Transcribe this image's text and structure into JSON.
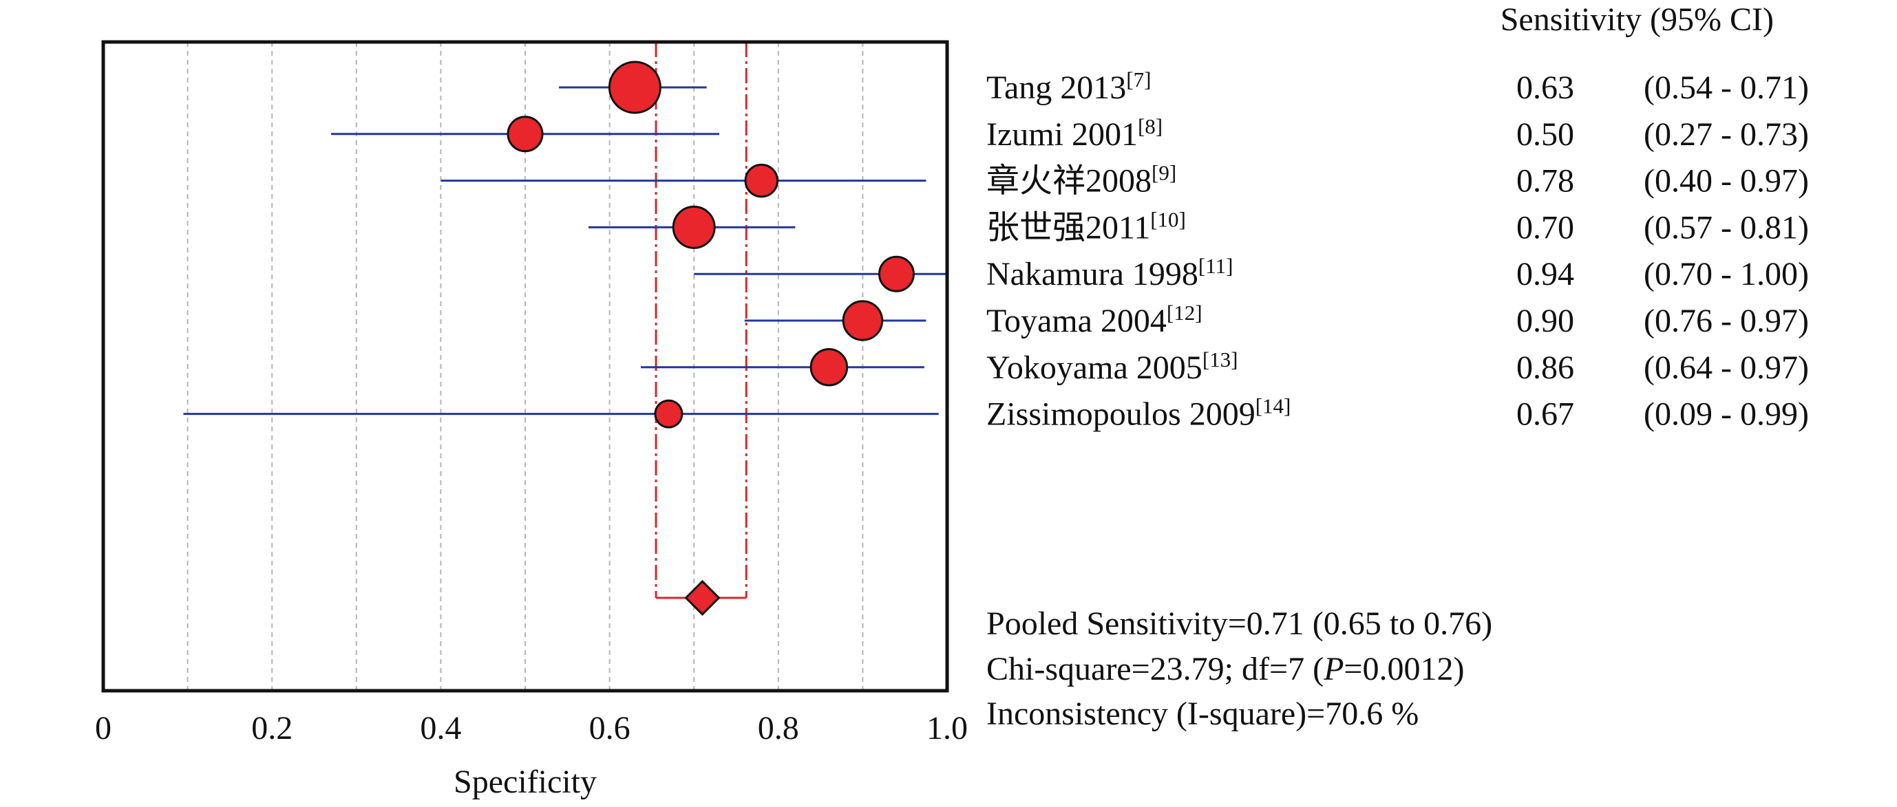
{
  "chart_data": {
    "type": "forest",
    "title": "",
    "xlabel": "Specificity",
    "ylabel": "",
    "xlim": [
      0,
      1.0
    ],
    "x_ticks": [
      "0",
      "0.2",
      "0.4",
      "0.6",
      "0.8",
      "1.0"
    ],
    "grid_x": [
      0.1,
      0.2,
      0.3,
      0.4,
      0.5,
      0.6,
      0.7,
      0.8,
      0.9
    ],
    "column_header": "Sensitivity (95% CI)",
    "colors": {
      "point": "#e8262c",
      "ci_line": "#23379b",
      "pooled_lines": "#d42a2a",
      "grid": "#b5b5b5"
    },
    "studies": [
      {
        "name": "Tang 2013",
        "ref": "[7]",
        "value": 0.63,
        "value_label": "0.63",
        "ci_low": 0.54,
        "ci_high": 0.71,
        "ci_label": "(0.54 - 0.71)",
        "weight": 1.0,
        "line_low": 0.54,
        "line_high": 0.715
      },
      {
        "name": "Izumi 2001",
        "ref": "[8]",
        "value": 0.5,
        "value_label": "0.50",
        "ci_low": 0.27,
        "ci_high": 0.73,
        "ci_label": "(0.27 - 0.73)",
        "weight": 0.52,
        "line_low": 0.27,
        "line_high": 0.73
      },
      {
        "name": "章火祥2008",
        "ref": "[9]",
        "value": 0.78,
        "value_label": "0.78",
        "ci_low": 0.4,
        "ci_high": 0.97,
        "ci_label": "(0.40 - 0.97)",
        "weight": 0.45,
        "line_low": 0.4,
        "line_high": 0.975
      },
      {
        "name": "张世强2011",
        "ref": "[10]",
        "value": 0.7,
        "value_label": "0.70",
        "ci_low": 0.57,
        "ci_high": 0.81,
        "ci_label": "(0.57 - 0.81)",
        "weight": 0.72,
        "line_low": 0.575,
        "line_high": 0.82
      },
      {
        "name": "Nakamura 1998",
        "ref": "[11]",
        "value": 0.94,
        "value_label": "0.94",
        "ci_low": 0.7,
        "ci_high": 1.0,
        "ci_label": "(0.70 - 1.00)",
        "weight": 0.52,
        "line_low": 0.7,
        "line_high": 1.0
      },
      {
        "name": "Toyama 2004",
        "ref": "[12]",
        "value": 0.9,
        "value_label": "0.90",
        "ci_low": 0.76,
        "ci_high": 0.97,
        "ci_label": "(0.76 - 0.97)",
        "weight": 0.65,
        "line_low": 0.76,
        "line_high": 0.975
      },
      {
        "name": "Yokoyama 2005",
        "ref": "[13]",
        "value": 0.86,
        "value_label": "0.86",
        "ci_low": 0.64,
        "ci_high": 0.97,
        "ci_label": "(0.64 - 0.97)",
        "weight": 0.57,
        "line_low": 0.637,
        "line_high": 0.973
      },
      {
        "name": "Zissimopoulos 2009",
        "ref": "[14]",
        "value": 0.67,
        "value_label": "0.67",
        "ci_low": 0.09,
        "ci_high": 0.99,
        "ci_label": "(0.09 - 0.99)",
        "weight": 0.3,
        "line_low": 0.095,
        "line_high": 0.99
      }
    ],
    "pooled": {
      "value": 0.71,
      "ci_low": 0.65,
      "ci_high": 0.76,
      "line_low": 0.655,
      "line_high": 0.762
    },
    "summary": [
      "Pooled Sensitivity=0.71 (0.65 to 0.76)",
      "Inconsistency (I-square)=70.6 %"
    ],
    "chi_square": {
      "prefix": "Chi-square=23.79; df=7 (",
      "p_symbol": "P",
      "p_value": "=0.0012)"
    }
  }
}
